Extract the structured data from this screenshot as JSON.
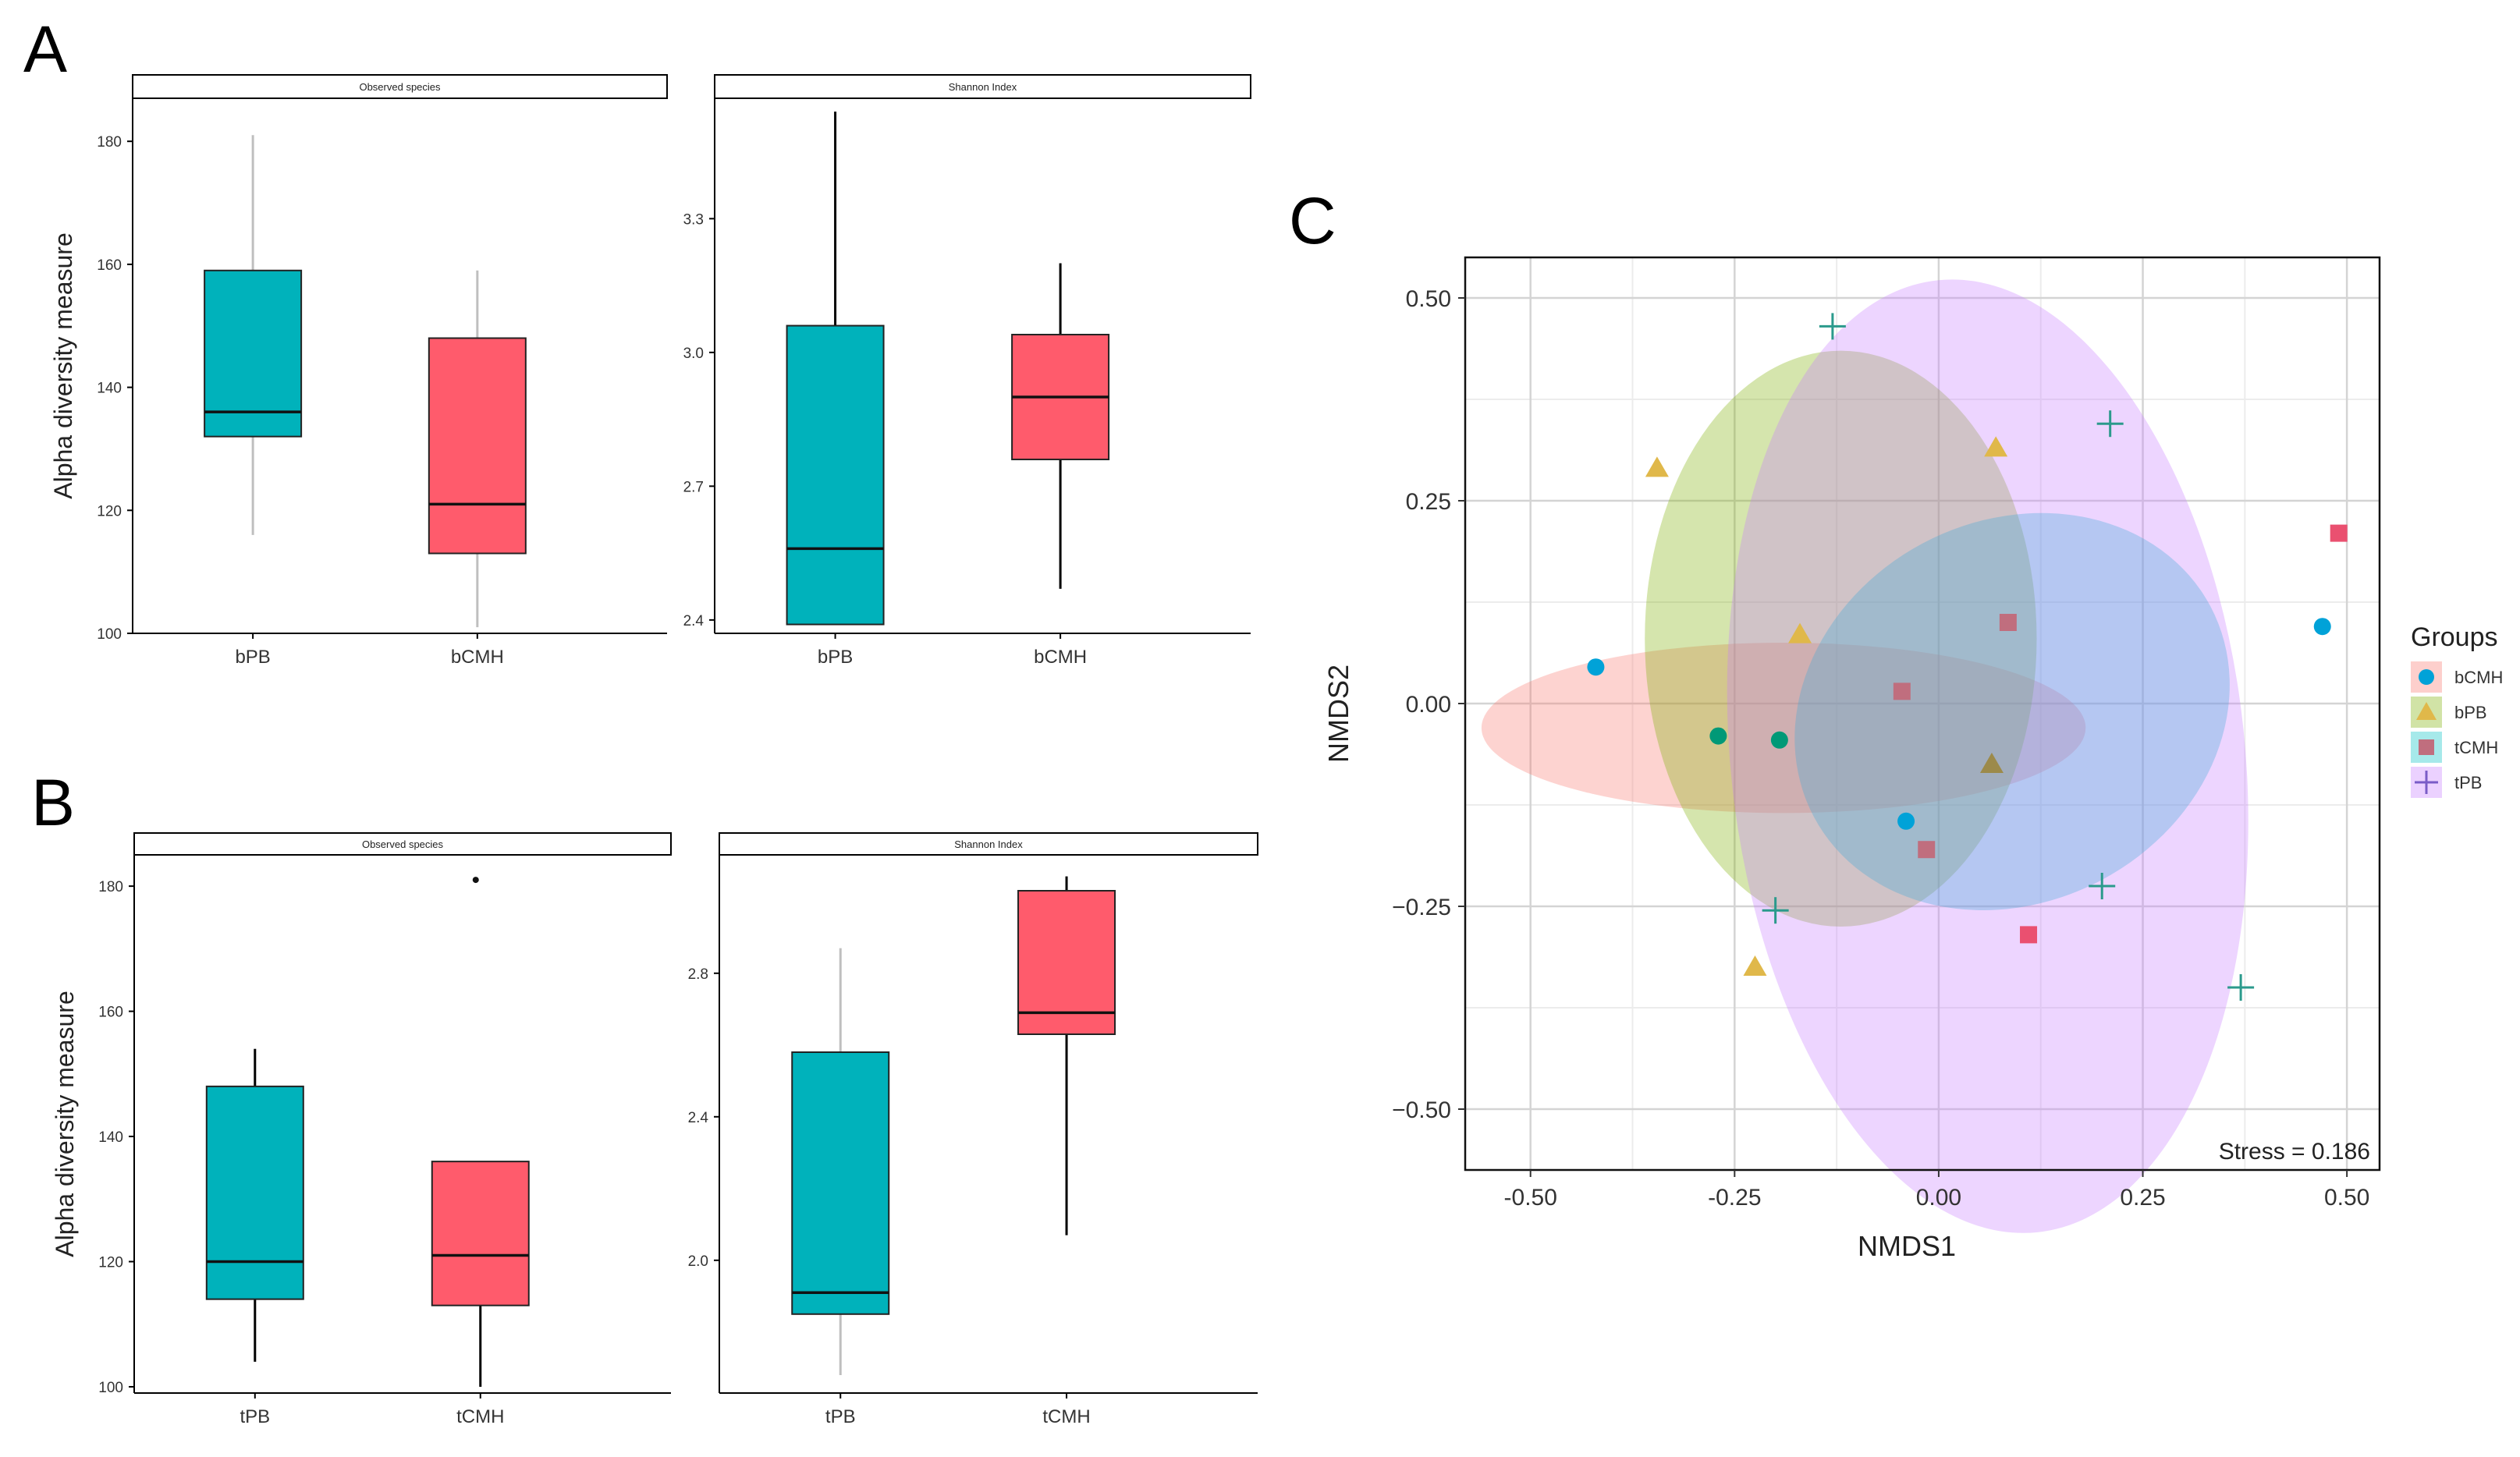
{
  "panel_labels": {
    "a": "A",
    "b": "B",
    "c": "C"
  },
  "chart_data": [
    {
      "id": "A-observed",
      "type": "box",
      "panel": "A",
      "strip_title": "Observed species",
      "ylabel": "Alpha diversity measure",
      "categories": [
        "bPB",
        "bCMH"
      ],
      "ylim": [
        100,
        187
      ],
      "yticks": [
        100,
        120,
        140,
        160,
        180
      ],
      "ytick_labels": [
        "100",
        "120",
        "140",
        "160",
        "180"
      ],
      "boxes": [
        {
          "category": "bPB",
          "color": "#00b2bb",
          "whisker_color": "#bfbfbf",
          "min": 116,
          "q1": 132,
          "median": 136,
          "q3": 159,
          "max": 181
        },
        {
          "category": "bCMH",
          "color": "#ff5b6c",
          "whisker_color": "#bfbfbf",
          "min": 101,
          "q1": 113,
          "median": 121,
          "q3": 148,
          "max": 159
        }
      ],
      "outliers": []
    },
    {
      "id": "A-shannon",
      "type": "box",
      "panel": "A",
      "strip_title": "Shannon Index",
      "ylabel": "",
      "categories": [
        "bPB",
        "bCMH"
      ],
      "ylim": [
        2.37,
        3.57
      ],
      "yticks": [
        2.4,
        2.7,
        3.0,
        3.3
      ],
      "ytick_labels": [
        "2.4",
        "2.7",
        "3.0",
        "3.3"
      ],
      "boxes": [
        {
          "category": "bPB",
          "color": "#00b2bb",
          "whisker_color": "#000000",
          "min": 2.39,
          "q1": 2.39,
          "median": 2.56,
          "q3": 3.06,
          "max": 3.54
        },
        {
          "category": "bCMH",
          "color": "#ff5b6c",
          "whisker_color": "#000000",
          "min": 2.47,
          "q1": 2.76,
          "median": 2.9,
          "q3": 3.04,
          "max": 3.2
        }
      ],
      "outliers": []
    },
    {
      "id": "B-observed",
      "type": "box",
      "panel": "B",
      "strip_title": "Observed species",
      "ylabel": "Alpha diversity measure",
      "categories": [
        "tPB",
        "tCMH"
      ],
      "ylim": [
        99,
        185
      ],
      "yticks": [
        100,
        120,
        140,
        160,
        180
      ],
      "ytick_labels": [
        "100",
        "120",
        "140",
        "160",
        "180"
      ],
      "boxes": [
        {
          "category": "tPB",
          "color": "#00b2bb",
          "whisker_color": "#000000",
          "min": 104,
          "q1": 114,
          "median": 120,
          "q3": 148,
          "max": 154
        },
        {
          "category": "tCMH",
          "color": "#ff5b6c",
          "whisker_color": "#000000",
          "min": 100,
          "q1": 113,
          "median": 121,
          "q3": 136,
          "max": 136
        }
      ],
      "outliers": [
        {
          "category": "tCMH",
          "value": 181
        }
      ]
    },
    {
      "id": "B-shannon",
      "type": "box",
      "panel": "B",
      "strip_title": "Shannon Index",
      "ylabel": "",
      "categories": [
        "tPB",
        "tCMH"
      ],
      "ylim": [
        1.63,
        3.13
      ],
      "yticks": [
        2.0,
        2.4,
        2.8
      ],
      "ytick_labels": [
        "2.0",
        "2.4",
        "2.8"
      ],
      "boxes": [
        {
          "category": "tPB",
          "color": "#00b2bb",
          "whisker_color": "#bfbfbf",
          "min": 1.68,
          "q1": 1.85,
          "median": 1.91,
          "q3": 2.58,
          "max": 2.87
        },
        {
          "category": "tCMH",
          "color": "#ff5b6c",
          "whisker_color": "#000000",
          "min": 2.07,
          "q1": 2.63,
          "median": 2.69,
          "q3": 3.03,
          "max": 3.07
        }
      ],
      "outliers": []
    },
    {
      "id": "C-nmds",
      "type": "scatter",
      "panel": "C",
      "xlabel": "NMDS1",
      "ylabel": "NMDS2",
      "xlim": [
        -0.58,
        0.54
      ],
      "ylim": [
        -0.575,
        0.55
      ],
      "xticks": [
        -0.5,
        -0.25,
        0.0,
        0.25,
        0.5
      ],
      "xtick_labels": [
        "-0.50",
        "-0.25",
        "0.00",
        "0.25",
        "0.50"
      ],
      "yticks": [
        -0.5,
        -0.25,
        0.0,
        0.25,
        0.5
      ],
      "ytick_labels": [
        "−0.50",
        "−0.25",
        "0.00",
        "0.25",
        "0.50"
      ],
      "stress_text": "Stress = 0.186",
      "legend_title": "Groups",
      "groups": [
        {
          "name": "bCMH",
          "marker": "circle",
          "ellipse_color": "#f8766d",
          "points": [
            [
              -0.42,
              0.045
            ],
            [
              -0.27,
              -0.04
            ],
            [
              -0.195,
              -0.045
            ],
            [
              -0.04,
              -0.145
            ],
            [
              0.47,
              0.095
            ]
          ]
        },
        {
          "name": "bPB",
          "marker": "triangle",
          "ellipse_color": "#7cae00",
          "points": [
            [
              -0.345,
              0.29
            ],
            [
              -0.17,
              0.085
            ],
            [
              -0.225,
              -0.325
            ],
            [
              0.07,
              0.315
            ],
            [
              0.065,
              -0.075
            ]
          ]
        },
        {
          "name": "tCMH",
          "marker": "square",
          "ellipse_color": "#00bfc4",
          "points": [
            [
              -0.045,
              0.015
            ],
            [
              0.085,
              0.1
            ],
            [
              -0.015,
              -0.18
            ],
            [
              0.11,
              -0.285
            ],
            [
              0.49,
              0.21
            ]
          ]
        },
        {
          "name": "tPB",
          "marker": "plus",
          "ellipse_color": "#c77cff",
          "points": [
            [
              -0.13,
              0.465
            ],
            [
              0.21,
              0.345
            ],
            [
              -0.2,
              -0.255
            ],
            [
              0.2,
              -0.225
            ],
            [
              0.37,
              -0.35
            ]
          ]
        }
      ],
      "ellipses": [
        {
          "group": "bCMH",
          "cx": -0.19,
          "cy": -0.03,
          "rx": 0.37,
          "ry": 0.105,
          "angle_deg": 0
        },
        {
          "group": "bPB",
          "cx": -0.12,
          "cy": 0.08,
          "rx": 0.24,
          "ry": 0.355,
          "angle_deg": 0
        },
        {
          "group": "tCMH",
          "cx": 0.09,
          "cy": -0.01,
          "rx": 0.275,
          "ry": 0.235,
          "angle_deg": 28
        },
        {
          "group": "tPB",
          "cx": 0.06,
          "cy": -0.065,
          "rx": 0.315,
          "ry": 0.59,
          "angle_deg": 6
        }
      ],
      "marker_colors": [
        "#00a2d8",
        "#009977",
        "#e0b84a",
        "#c06e7e",
        "#ea5070",
        "#2b9a8c"
      ]
    }
  ]
}
